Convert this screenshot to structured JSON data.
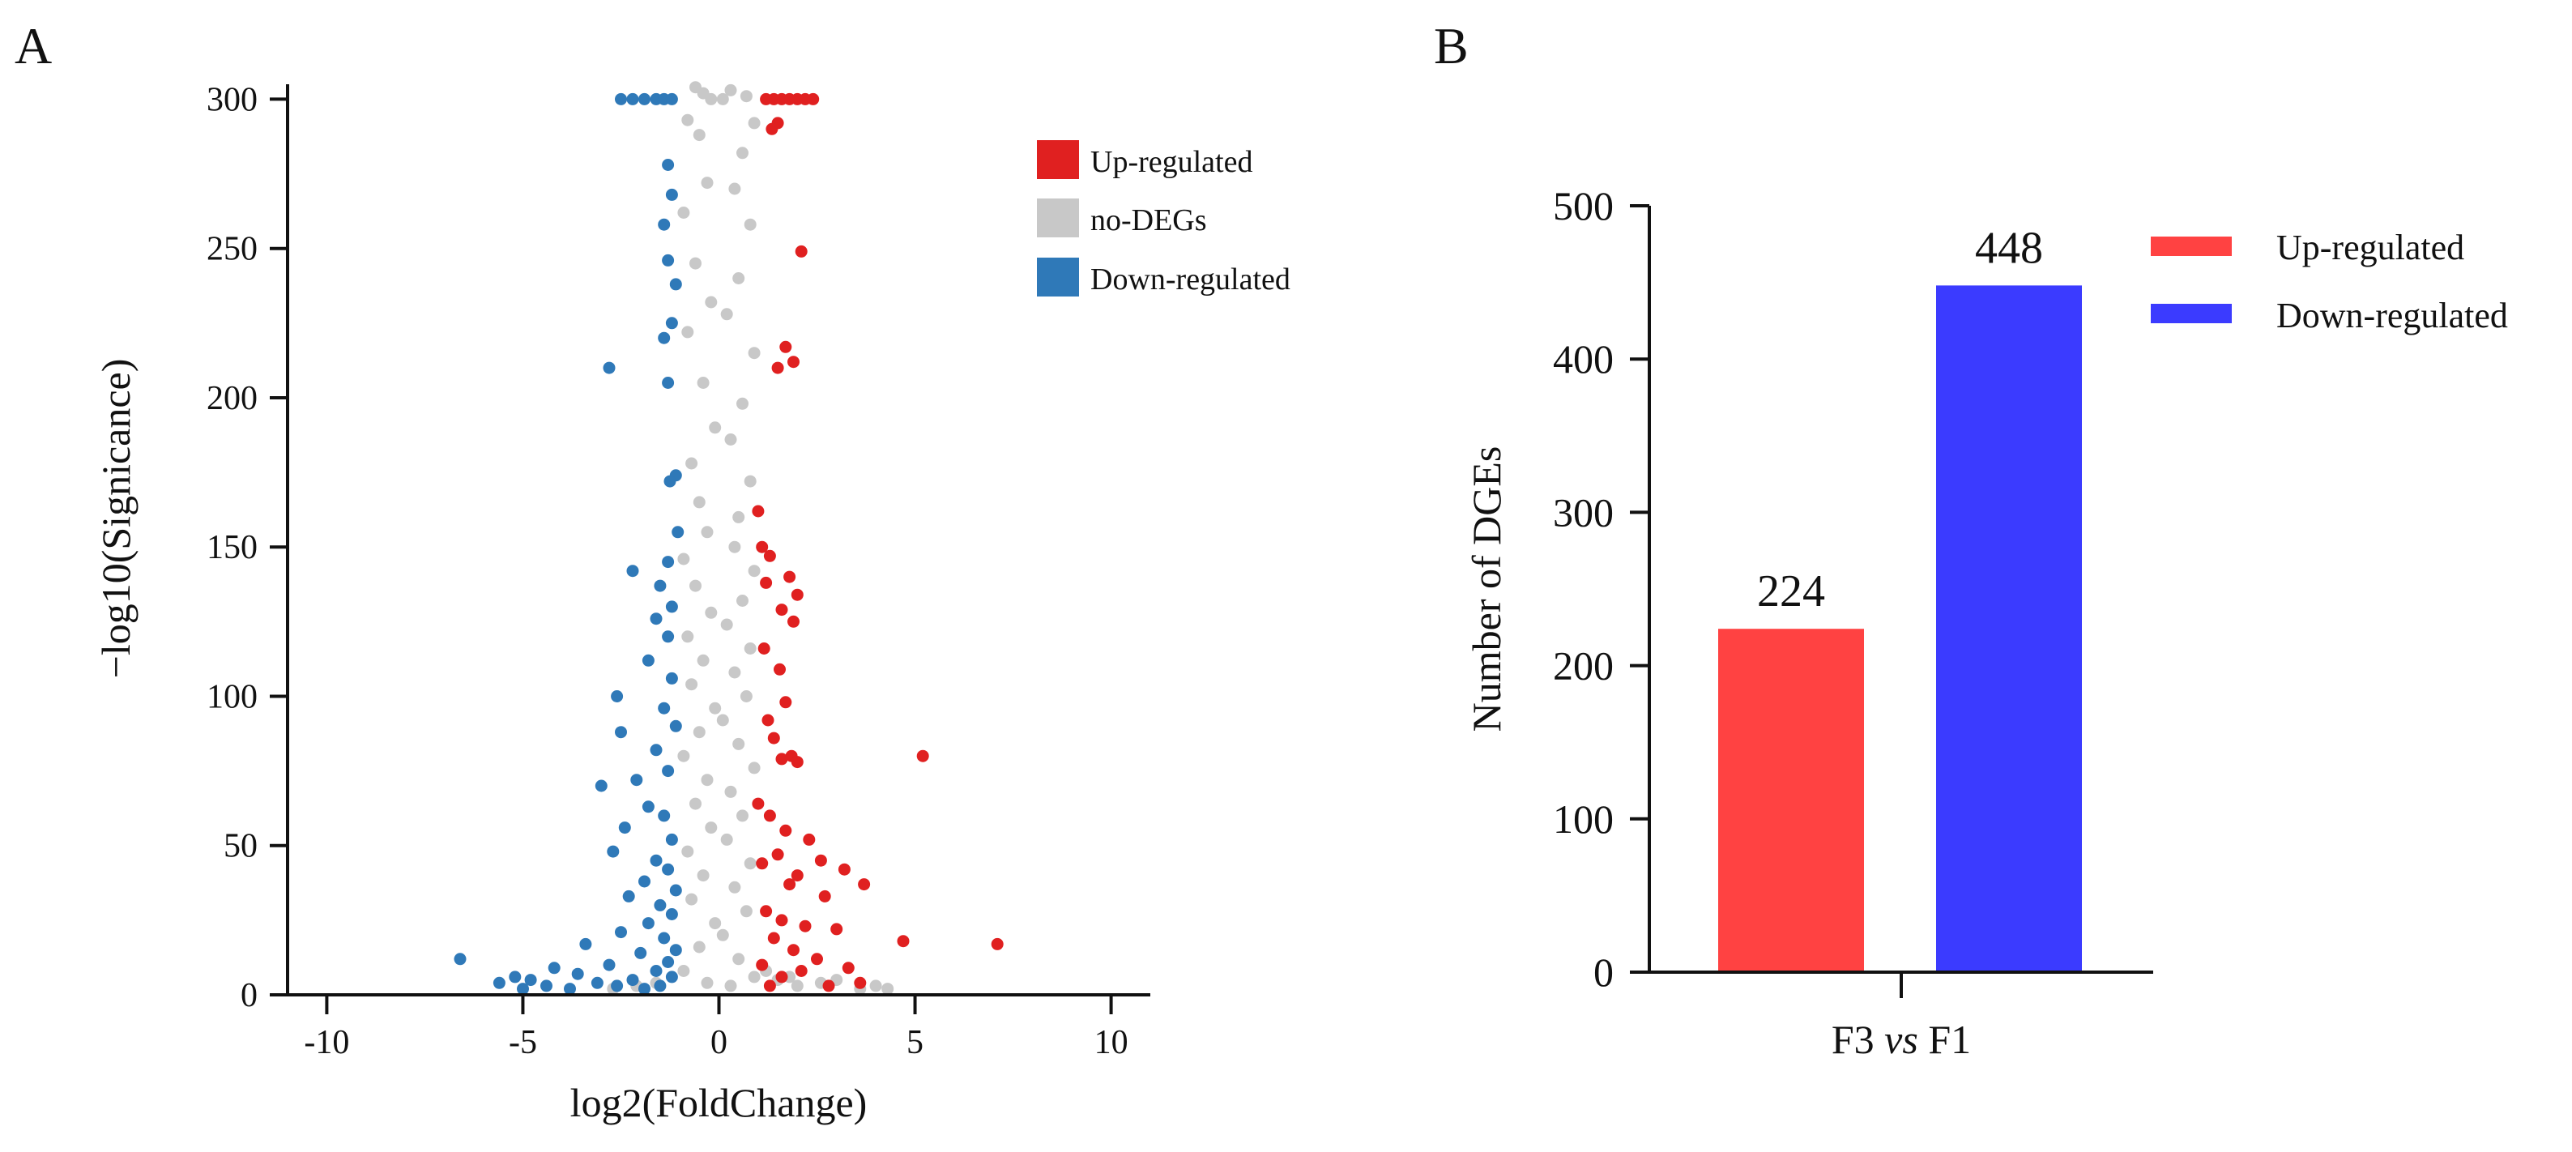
{
  "panel_a": {
    "letter": "A",
    "chart_data": {
      "type": "scatter",
      "title": "",
      "xlabel": "log2(FoldChange)",
      "ylabel": "−log10(Signicance)",
      "xlim": [
        -11,
        11
      ],
      "ylim": [
        0,
        305
      ],
      "xticks": [
        "-10",
        "-5",
        "0",
        "5",
        "10"
      ],
      "yticks": [
        "0",
        "50",
        "100",
        "150",
        "200",
        "250",
        "300"
      ],
      "grid": false,
      "legend_position": "top-right",
      "series": [
        {
          "name": "Up-regulated",
          "color": "#E02020",
          "points": [
            [
              1.2,
              300
            ],
            [
              1.4,
              300
            ],
            [
              1.6,
              300
            ],
            [
              1.8,
              300
            ],
            [
              2.0,
              300
            ],
            [
              2.2,
              300
            ],
            [
              2.4,
              300
            ],
            [
              1.5,
              292
            ],
            [
              1.35,
              290
            ],
            [
              2.1,
              249
            ],
            [
              1.7,
              217
            ],
            [
              1.9,
              212
            ],
            [
              1.5,
              210
            ],
            [
              1.0,
              162
            ],
            [
              1.1,
              150
            ],
            [
              1.3,
              147
            ],
            [
              1.2,
              138
            ],
            [
              1.8,
              140
            ],
            [
              2.0,
              134
            ],
            [
              1.6,
              129
            ],
            [
              1.9,
              125
            ],
            [
              1.15,
              116
            ],
            [
              1.55,
              109
            ],
            [
              1.7,
              98
            ],
            [
              1.25,
              92
            ],
            [
              1.4,
              86
            ],
            [
              1.85,
              80
            ],
            [
              1.6,
              79
            ],
            [
              2.0,
              78
            ],
            [
              5.2,
              80
            ],
            [
              1.0,
              64
            ],
            [
              1.3,
              60
            ],
            [
              1.7,
              55
            ],
            [
              2.3,
              52
            ],
            [
              1.5,
              47
            ],
            [
              2.6,
              45
            ],
            [
              1.1,
              44
            ],
            [
              3.2,
              42
            ],
            [
              2.0,
              40
            ],
            [
              1.8,
              37
            ],
            [
              3.7,
              37
            ],
            [
              2.7,
              33
            ],
            [
              1.2,
              28
            ],
            [
              1.6,
              25
            ],
            [
              2.2,
              23
            ],
            [
              3.0,
              22
            ],
            [
              1.4,
              19
            ],
            [
              4.7,
              18
            ],
            [
              7.1,
              17
            ],
            [
              1.9,
              15
            ],
            [
              2.5,
              12
            ],
            [
              1.1,
              10
            ],
            [
              3.3,
              9
            ],
            [
              2.1,
              8
            ],
            [
              1.6,
              6
            ],
            [
              3.6,
              4
            ],
            [
              1.3,
              3
            ],
            [
              2.8,
              3
            ]
          ]
        },
        {
          "name": "no-DEGs",
          "color": "#C8C8C8",
          "points": [
            [
              -0.6,
              304
            ],
            [
              -0.4,
              302
            ],
            [
              0.3,
              303
            ],
            [
              0.1,
              300
            ],
            [
              -0.2,
              300
            ],
            [
              0.7,
              301
            ],
            [
              -0.8,
              293
            ],
            [
              0.9,
              292
            ],
            [
              -0.5,
              288
            ],
            [
              0.6,
              282
            ],
            [
              -0.3,
              272
            ],
            [
              0.4,
              270
            ],
            [
              -0.9,
              262
            ],
            [
              0.8,
              258
            ],
            [
              -0.6,
              245
            ],
            [
              0.5,
              240
            ],
            [
              -0.2,
              232
            ],
            [
              0.2,
              228
            ],
            [
              -0.8,
              222
            ],
            [
              0.9,
              215
            ],
            [
              -0.4,
              205
            ],
            [
              0.6,
              198
            ],
            [
              -0.1,
              190
            ],
            [
              0.3,
              186
            ],
            [
              -0.7,
              178
            ],
            [
              0.8,
              172
            ],
            [
              -0.5,
              165
            ],
            [
              0.5,
              160
            ],
            [
              -0.3,
              155
            ],
            [
              0.4,
              150
            ],
            [
              -0.9,
              146
            ],
            [
              0.9,
              142
            ],
            [
              -0.6,
              137
            ],
            [
              0.6,
              132
            ],
            [
              -0.2,
              128
            ],
            [
              0.2,
              124
            ],
            [
              -0.8,
              120
            ],
            [
              0.8,
              116
            ],
            [
              -0.4,
              112
            ],
            [
              0.4,
              108
            ],
            [
              -0.7,
              104
            ],
            [
              0.7,
              100
            ],
            [
              -0.1,
              96
            ],
            [
              0.1,
              92
            ],
            [
              -0.5,
              88
            ],
            [
              0.5,
              84
            ],
            [
              -0.9,
              80
            ],
            [
              0.9,
              76
            ],
            [
              -0.3,
              72
            ],
            [
              0.3,
              68
            ],
            [
              -0.6,
              64
            ],
            [
              0.6,
              60
            ],
            [
              -0.2,
              56
            ],
            [
              0.2,
              52
            ],
            [
              -0.8,
              48
            ],
            [
              0.8,
              44
            ],
            [
              -0.4,
              40
            ],
            [
              0.4,
              36
            ],
            [
              -0.7,
              32
            ],
            [
              0.7,
              28
            ],
            [
              -0.1,
              24
            ],
            [
              0.1,
              20
            ],
            [
              -0.5,
              16
            ],
            [
              0.5,
              12
            ],
            [
              -0.9,
              8
            ],
            [
              0.9,
              6
            ],
            [
              -0.3,
              4
            ],
            [
              0.3,
              3
            ],
            [
              1.5,
              5
            ],
            [
              2.0,
              3
            ],
            [
              2.6,
              4
            ],
            [
              3.0,
              5
            ],
            [
              3.6,
              2
            ],
            [
              4.0,
              3
            ],
            [
              4.3,
              2
            ],
            [
              -1.6,
              4
            ],
            [
              -2.1,
              3
            ],
            [
              -2.7,
              2
            ],
            [
              1.2,
              8
            ],
            [
              1.8,
              6
            ]
          ]
        },
        {
          "name": "Down-regulated",
          "color": "#2F79B8",
          "points": [
            [
              -2.5,
              300
            ],
            [
              -2.2,
              300
            ],
            [
              -1.9,
              300
            ],
            [
              -1.6,
              300
            ],
            [
              -1.4,
              300
            ],
            [
              -1.2,
              300
            ],
            [
              -1.3,
              278
            ],
            [
              -1.2,
              268
            ],
            [
              -1.4,
              258
            ],
            [
              -1.3,
              246
            ],
            [
              -1.1,
              238
            ],
            [
              -1.2,
              225
            ],
            [
              -1.4,
              220
            ],
            [
              -2.8,
              210
            ],
            [
              -1.3,
              205
            ],
            [
              -1.1,
              174
            ],
            [
              -1.25,
              172
            ],
            [
              -1.05,
              155
            ],
            [
              -1.3,
              145
            ],
            [
              -2.2,
              142
            ],
            [
              -1.5,
              137
            ],
            [
              -1.2,
              130
            ],
            [
              -1.6,
              126
            ],
            [
              -1.3,
              120
            ],
            [
              -1.8,
              112
            ],
            [
              -1.2,
              106
            ],
            [
              -2.6,
              100
            ],
            [
              -1.4,
              96
            ],
            [
              -1.1,
              90
            ],
            [
              -2.5,
              88
            ],
            [
              -1.6,
              82
            ],
            [
              -1.3,
              75
            ],
            [
              -2.1,
              72
            ],
            [
              -3.0,
              70
            ],
            [
              -1.8,
              63
            ],
            [
              -1.4,
              60
            ],
            [
              -2.4,
              56
            ],
            [
              -1.2,
              52
            ],
            [
              -2.7,
              48
            ],
            [
              -1.6,
              45
            ],
            [
              -1.3,
              42
            ],
            [
              -1.9,
              38
            ],
            [
              -1.1,
              35
            ],
            [
              -2.3,
              33
            ],
            [
              -1.5,
              30
            ],
            [
              -1.2,
              27
            ],
            [
              -1.8,
              24
            ],
            [
              -2.5,
              21
            ],
            [
              -1.4,
              19
            ],
            [
              -3.4,
              17
            ],
            [
              -1.1,
              15
            ],
            [
              -2.0,
              14
            ],
            [
              -6.6,
              12
            ],
            [
              -1.3,
              11
            ],
            [
              -2.8,
              10
            ],
            [
              -4.2,
              9
            ],
            [
              -1.6,
              8
            ],
            [
              -3.6,
              7
            ],
            [
              -5.2,
              6
            ],
            [
              -1.2,
              6
            ],
            [
              -2.2,
              5
            ],
            [
              -4.8,
              5
            ],
            [
              -3.1,
              4
            ],
            [
              -5.6,
              4
            ],
            [
              -1.5,
              3
            ],
            [
              -2.6,
              3
            ],
            [
              -4.4,
              3
            ],
            [
              -3.8,
              2
            ],
            [
              -5.0,
              2
            ],
            [
              -1.9,
              2
            ]
          ]
        }
      ]
    }
  },
  "panel_b": {
    "letter": "B",
    "chart_data": {
      "type": "bar",
      "title": "",
      "categories": [
        "F3 vs F1"
      ],
      "category_label": {
        "before": "F3 ",
        "italic": "vs",
        "after": " F1"
      },
      "ylabel": "Number of DGEs",
      "ylim": [
        0,
        500
      ],
      "yticks": [
        "0",
        "100",
        "200",
        "300",
        "400",
        "500"
      ],
      "grid": false,
      "legend_position": "top-right",
      "series": [
        {
          "name": "Up-regulated",
          "color": "#FF4242",
          "values": [
            224
          ],
          "label": "224"
        },
        {
          "name": "Down-regulated",
          "color": "#3B3BFF",
          "values": [
            448
          ],
          "label": "448"
        }
      ]
    }
  }
}
